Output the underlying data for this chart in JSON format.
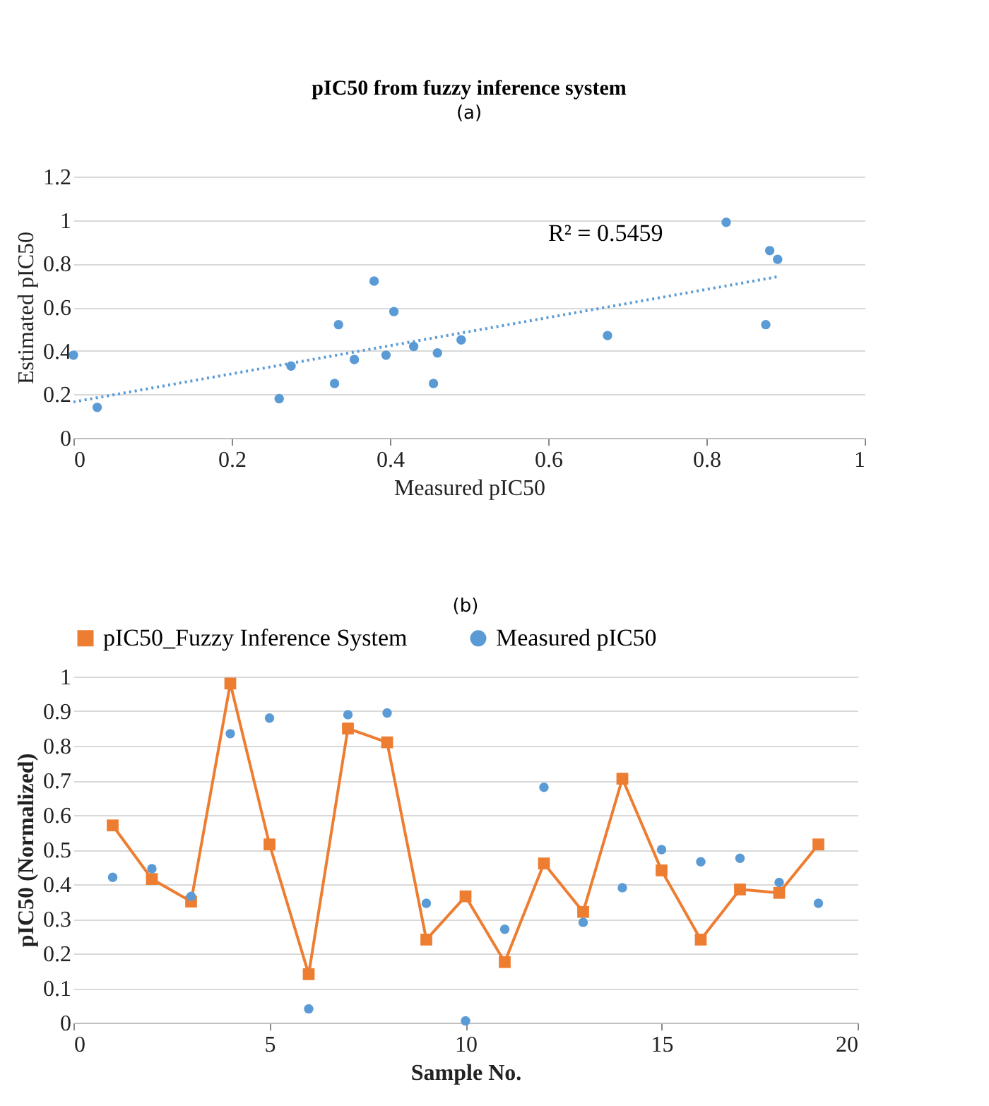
{
  "chart_data": [
    {
      "type": "scatter",
      "title": "pIC50 from fuzzy inference system",
      "xlabel": "Measured pIC50",
      "ylabel": "Estimated pIC50",
      "annotations": [
        "(a)",
        "R² = 0.5459"
      ],
      "xlim": [
        0,
        1
      ],
      "xticks": [
        0,
        0.2,
        0.4,
        0.6,
        0.8,
        1
      ],
      "ylim": [
        0,
        1.2
      ],
      "yticks": [
        0,
        0.2,
        0.4,
        0.6,
        0.8,
        1,
        1.2
      ],
      "grid": "y",
      "series": [
        {
          "color": "#5b9bd5",
          "marker": "circle",
          "x": [
            0,
            0.03,
            0.26,
            0.275,
            0.33,
            0.335,
            0.355,
            0.38,
            0.395,
            0.405,
            0.43,
            0.455,
            0.46,
            0.49,
            0.675,
            0.825,
            0.88,
            0.875,
            0.89
          ],
          "values": [
            0.38,
            0.14,
            0.18,
            0.33,
            0.25,
            0.52,
            0.36,
            0.72,
            0.38,
            0.58,
            0.42,
            0.25,
            0.39,
            0.45,
            0.47,
            0.99,
            0.86,
            0.52,
            0.82
          ]
        },
        {
          "type": "line",
          "color": "#5b9bd5",
          "marker": "none",
          "line_style": "dotted",
          "x": [
            0,
            0.89
          ],
          "values": [
            0.165,
            0.74
          ]
        }
      ]
    },
    {
      "type": "line",
      "xlabel": "Sample No.",
      "ylabel": "pIC50 (Normalized)",
      "annotations": [
        "(b)"
      ],
      "xlim": [
        0,
        20
      ],
      "xticks": [
        0,
        5,
        10,
        15,
        20
      ],
      "ylim": [
        0,
        1
      ],
      "yticks": [
        0,
        0.1,
        0.2,
        0.3,
        0.4,
        0.5,
        0.6,
        0.7,
        0.8,
        0.9,
        1
      ],
      "grid": "y",
      "legend": "top",
      "x": [
        1,
        2,
        3,
        4,
        5,
        6,
        7,
        8,
        9,
        10,
        11,
        12,
        13,
        14,
        15,
        16,
        17,
        18,
        19
      ],
      "series": [
        {
          "name": "pIC50_Fuzzy Inference System",
          "marker": "square",
          "color": "#ed7d31",
          "values": [
            0.57,
            0.415,
            0.35,
            0.98,
            0.515,
            0.14,
            0.85,
            0.81,
            0.24,
            0.365,
            0.175,
            0.46,
            0.32,
            0.705,
            0.44,
            0.24,
            0.385,
            0.375,
            0.515
          ]
        },
        {
          "name": "Measured pIC50",
          "type": "scatter",
          "marker": "circle",
          "color": "#5b9bd5",
          "values": [
            0.42,
            0.445,
            0.365,
            0.835,
            0.88,
            0.04,
            0.89,
            0.895,
            0.345,
            0.005,
            0.27,
            0.68,
            0.29,
            0.39,
            0.5,
            0.465,
            0.475,
            0.405,
            0.345
          ]
        }
      ]
    }
  ]
}
